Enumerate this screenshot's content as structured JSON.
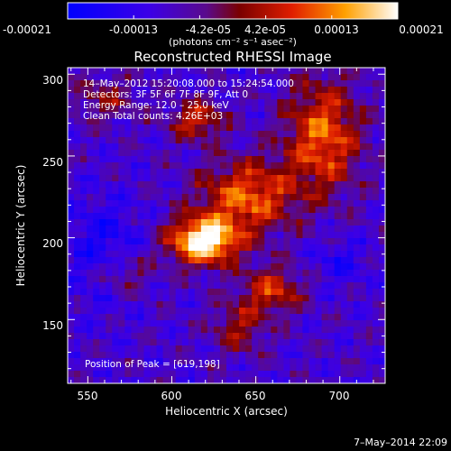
{
  "colorbar": {
    "ticks": [
      "-0.00021",
      "-0.00013",
      "-4.2e-05",
      "4.2e-05",
      "0.00013",
      "0.00021"
    ],
    "unit_label": "(photons cm⁻² s⁻¹ asec⁻²)",
    "range": [
      -0.00021,
      0.00021
    ]
  },
  "chart_data": {
    "type": "heatmap",
    "title": "Reconstructed RHESSI Image",
    "xlabel": "Heliocentric X (arcsec)",
    "ylabel": "Heliocentric Y (arcsec)",
    "xlim": [
      538,
      727
    ],
    "ylim": [
      111,
      304
    ],
    "x_ticks": [
      550,
      600,
      650,
      700
    ],
    "y_ticks": [
      150,
      200,
      250,
      300
    ],
    "colormap": "blue-purple-red-yellow-white",
    "peak": [
      619,
      198
    ],
    "annotations": [
      "14–May–2012 15:20:08.000 to 15:24:54.000",
      "Detectors: 3F 5F 6F 7F 8F 9F, Att 0",
      "Energy Range: 12.0 – 25.0 keV",
      "Clean     Total counts: 4.26E+03"
    ],
    "peak_label": "Position of Peak = [619,198]"
  },
  "footer": {
    "date": "7–May–2014 22:09"
  }
}
